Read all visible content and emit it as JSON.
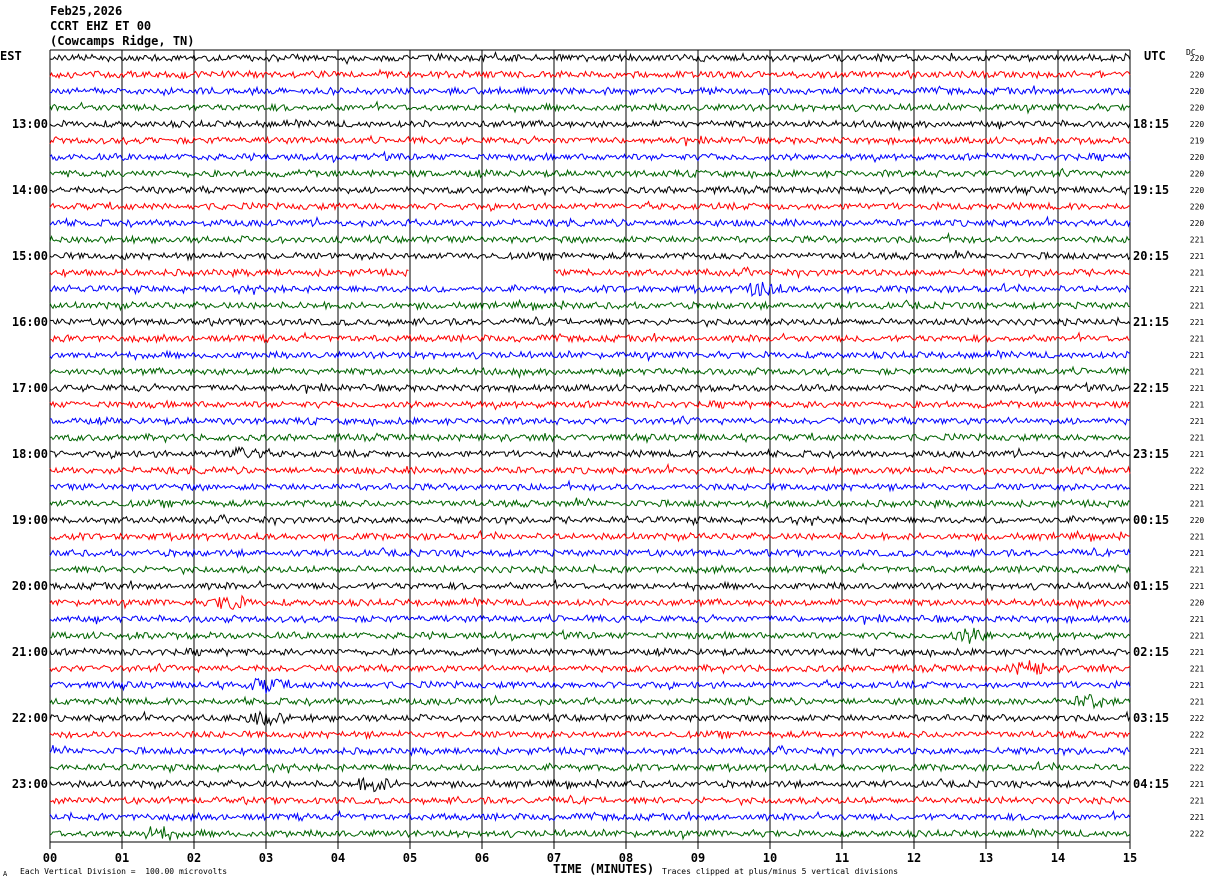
{
  "header": {
    "date": "Feb25,2026",
    "station": "CCRT EHZ ET 00",
    "location": "(Cowcamps Ridge, TN)"
  },
  "labels": {
    "left_zone": "EST",
    "right_zone": "UTC",
    "dc": "DC",
    "scale_note": "Each Vertical Division =  100.00 microvolts",
    "clip_note": "Traces clipped at plus/minus 5 vertical divisions",
    "x_title": "TIME (MINUTES)",
    "corner_mark": "A"
  },
  "colors": {
    "trace_cycle": [
      "#000000",
      "#ff0000",
      "#0000ff",
      "#006400"
    ],
    "grid": "#000000"
  },
  "chart_data": {
    "type": "line",
    "x_ticks": [
      "00",
      "01",
      "02",
      "03",
      "04",
      "05",
      "06",
      "07",
      "08",
      "09",
      "10",
      "11",
      "12",
      "13",
      "14",
      "15"
    ],
    "xlim": [
      0,
      15
    ],
    "left_hour_labels": [
      "13:00",
      "14:00",
      "15:00",
      "16:00",
      "17:00",
      "18:00",
      "19:00",
      "20:00",
      "21:00",
      "22:00",
      "23:00"
    ],
    "right_hour_labels": [
      "18:15",
      "19:15",
      "20:15",
      "21:15",
      "22:15",
      "23:15",
      "00:15",
      "01:15",
      "02:15",
      "03:15",
      "04:15"
    ],
    "first_hour_label_row": 4,
    "row_count": 48,
    "dc_offsets": [
      220,
      220,
      220,
      220,
      220,
      219,
      220,
      220,
      220,
      220,
      220,
      221,
      221,
      221,
      221,
      221,
      221,
      221,
      221,
      221,
      221,
      221,
      221,
      221,
      221,
      222,
      221,
      221,
      220,
      221,
      221,
      221,
      221,
      220,
      221,
      221,
      221,
      221,
      221,
      221,
      222,
      222,
      221,
      222,
      221,
      221,
      221,
      222
    ],
    "data_gaps": [
      {
        "row": 13,
        "start_min": 5.0,
        "end_min": 7.0
      }
    ],
    "amplitude_peaks": [
      {
        "row": 14,
        "minute": 9.9
      },
      {
        "row": 24,
        "minute": 2.7
      },
      {
        "row": 33,
        "minute": 2.5
      },
      {
        "row": 35,
        "minute": 12.8
      },
      {
        "row": 37,
        "minute": 13.6
      },
      {
        "row": 38,
        "minute": 3.0
      },
      {
        "row": 39,
        "minute": 14.5
      },
      {
        "row": 40,
        "minute": 3.0
      },
      {
        "row": 44,
        "minute": 4.5
      },
      {
        "row": 47,
        "minute": 1.5
      }
    ]
  }
}
